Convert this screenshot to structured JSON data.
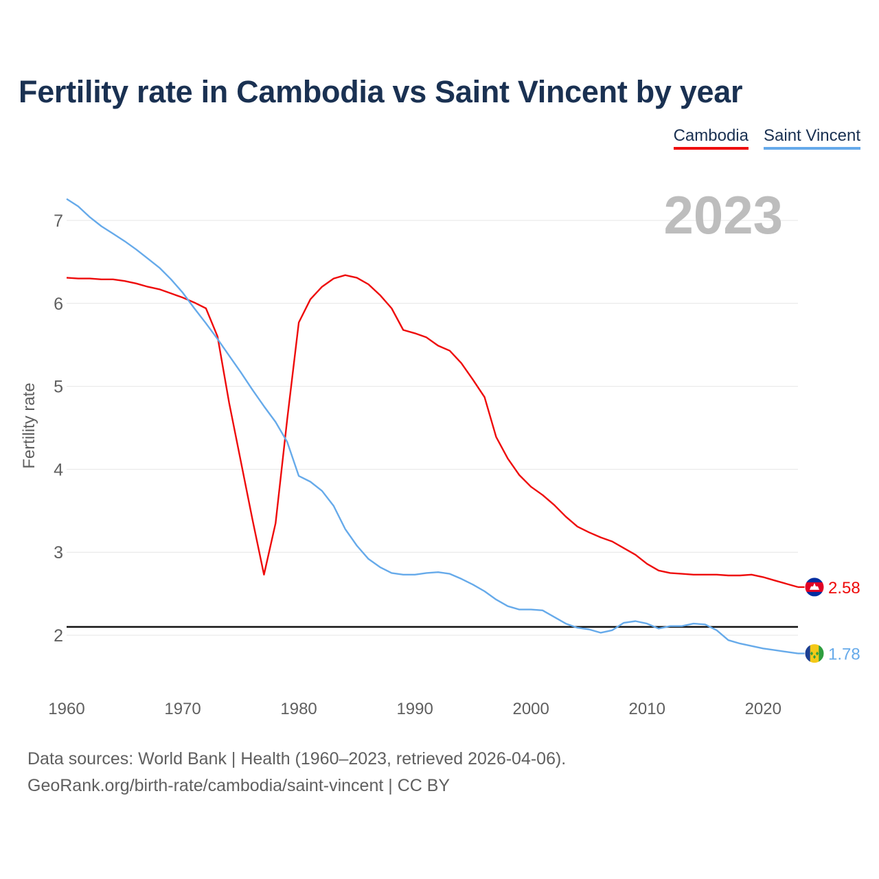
{
  "title": "Fertility rate in Cambodia vs Saint Vincent by year",
  "legend": [
    {
      "label": "Cambodia",
      "color": "#ee0a0a"
    },
    {
      "label": "Saint Vincent",
      "color": "#66aaea"
    }
  ],
  "chart_data": {
    "type": "line",
    "title": "Fertility rate in Cambodia vs Saint Vincent by year",
    "xlabel": "",
    "ylabel": "Fertility rate",
    "xlim": [
      1960,
      2023
    ],
    "ylim": [
      1.5,
      7.5
    ],
    "xticks": [
      1960,
      1970,
      1980,
      1990,
      2000,
      2010,
      2020
    ],
    "yticks": [
      2,
      3,
      4,
      5,
      6,
      7
    ],
    "year_label": "2023",
    "reference_line": 2.1,
    "x": [
      1960,
      1961,
      1962,
      1963,
      1964,
      1965,
      1966,
      1967,
      1968,
      1969,
      1970,
      1971,
      1972,
      1973,
      1974,
      1975,
      1976,
      1977,
      1978,
      1979,
      1980,
      1981,
      1982,
      1983,
      1984,
      1985,
      1986,
      1987,
      1988,
      1989,
      1990,
      1991,
      1992,
      1993,
      1994,
      1995,
      1996,
      1997,
      1998,
      1999,
      2000,
      2001,
      2002,
      2003,
      2004,
      2005,
      2006,
      2007,
      2008,
      2009,
      2010,
      2011,
      2012,
      2013,
      2014,
      2015,
      2016,
      2017,
      2018,
      2019,
      2020,
      2021,
      2022,
      2023
    ],
    "series": [
      {
        "name": "Cambodia",
        "color": "#ee0a0a",
        "end_label": "2.58",
        "values": [
          6.31,
          6.3,
          6.3,
          6.29,
          6.29,
          6.27,
          6.24,
          6.2,
          6.17,
          6.12,
          6.07,
          6.01,
          5.94,
          5.6,
          4.8,
          4.1,
          3.4,
          2.73,
          3.35,
          4.6,
          5.77,
          6.05,
          6.2,
          6.3,
          6.34,
          6.31,
          6.23,
          6.1,
          5.94,
          5.68,
          5.64,
          5.59,
          5.49,
          5.43,
          5.28,
          5.08,
          4.87,
          4.39,
          4.13,
          3.93,
          3.79,
          3.69,
          3.57,
          3.43,
          3.31,
          3.24,
          3.18,
          3.13,
          3.05,
          2.97,
          2.86,
          2.78,
          2.75,
          2.74,
          2.73,
          2.73,
          2.73,
          2.72,
          2.72,
          2.73,
          2.7,
          2.66,
          2.62,
          2.58
        ]
      },
      {
        "name": "Saint Vincent",
        "color": "#66aaea",
        "end_label": "1.78",
        "values": [
          7.26,
          7.17,
          7.04,
          6.93,
          6.84,
          6.75,
          6.65,
          6.54,
          6.43,
          6.29,
          6.13,
          5.94,
          5.76,
          5.57,
          5.37,
          5.17,
          4.96,
          4.76,
          4.57,
          4.33,
          3.92,
          3.85,
          3.74,
          3.56,
          3.28,
          3.08,
          2.92,
          2.82,
          2.75,
          2.73,
          2.73,
          2.75,
          2.76,
          2.74,
          2.68,
          2.61,
          2.53,
          2.43,
          2.35,
          2.31,
          2.31,
          2.3,
          2.22,
          2.14,
          2.09,
          2.07,
          2.03,
          2.06,
          2.15,
          2.17,
          2.14,
          2.08,
          2.11,
          2.11,
          2.14,
          2.13,
          2.06,
          1.94,
          1.9,
          1.87,
          1.84,
          1.82,
          1.8,
          1.78
        ]
      }
    ]
  },
  "source": {
    "line1": "Data sources: World Bank | Health (1960–2023, retrieved 2026-04-06).",
    "line2": "GeoRank.org/birth-rate/cambodia/saint-vincent | CC BY"
  }
}
